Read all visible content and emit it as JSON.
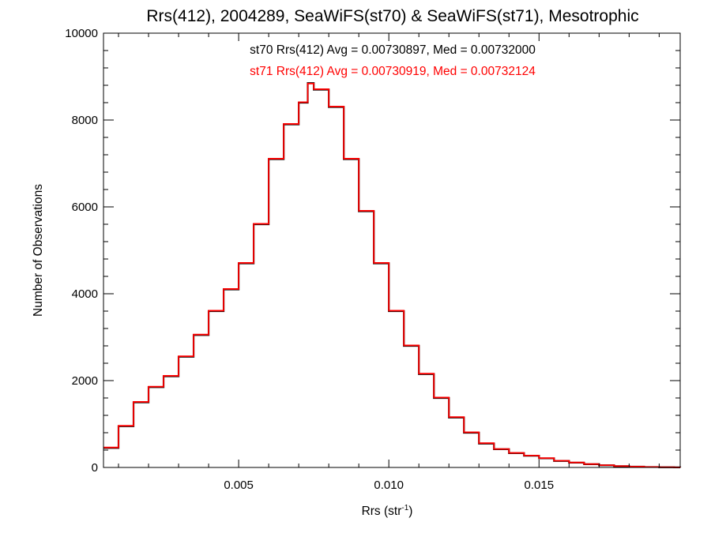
{
  "chart_data": {
    "type": "line",
    "title": "Rrs(412), 2004289, SeaWiFS(st70) & SeaWiFS(st71), Mesotrophic",
    "xlabel": "Rrs (str",
    "xlabel_sup": "-1",
    "xlabel_end": ")",
    "ylabel": "Number of Observations",
    "xlim": [
      0.0005,
      0.0197
    ],
    "ylim": [
      0,
      10000
    ],
    "xticks": [
      {
        "value": 0.005,
        "label": "0.005"
      },
      {
        "value": 0.01,
        "label": "0.010"
      },
      {
        "value": 0.015,
        "label": "0.015"
      }
    ],
    "yticks": [
      {
        "value": 0,
        "label": "0"
      },
      {
        "value": 2000,
        "label": "2000"
      },
      {
        "value": 4000,
        "label": "4000"
      },
      {
        "value": 6000,
        "label": "6000"
      },
      {
        "value": 8000,
        "label": "8000"
      },
      {
        "value": 10000,
        "label": "10000"
      }
    ],
    "annotations": [
      {
        "text": "st70 Rrs(412) Avg = 0.00730897, Med = 0.00732000",
        "color": "#000000"
      },
      {
        "text": "st71 Rrs(412) Avg = 0.00730919, Med = 0.00732124",
        "color": "#ff0000"
      }
    ],
    "series": [
      {
        "name": "st70",
        "color": "#000000",
        "step": true,
        "x": [
          0.0005,
          0.001,
          0.0015,
          0.002,
          0.0025,
          0.003,
          0.0035,
          0.004,
          0.0045,
          0.005,
          0.0055,
          0.006,
          0.0065,
          0.007,
          0.0073,
          0.0075,
          0.008,
          0.0085,
          0.009,
          0.0095,
          0.01,
          0.0105,
          0.011,
          0.0115,
          0.012,
          0.0125,
          0.013,
          0.0135,
          0.014,
          0.0145,
          0.015,
          0.0155,
          0.016,
          0.0165,
          0.017,
          0.0175,
          0.018,
          0.0185,
          0.019,
          0.0195,
          0.0197
        ],
        "y": [
          450,
          950,
          1500,
          1850,
          2100,
          2550,
          3050,
          3600,
          4100,
          4700,
          5600,
          7100,
          7900,
          8400,
          8850,
          8700,
          8300,
          7100,
          5900,
          4700,
          3600,
          2800,
          2150,
          1600,
          1150,
          800,
          550,
          420,
          330,
          270,
          210,
          150,
          110,
          75,
          50,
          30,
          18,
          10,
          5,
          2,
          0
        ]
      },
      {
        "name": "st71",
        "color": "#ff0000",
        "step": true,
        "x": [
          0.0005,
          0.001,
          0.0015,
          0.002,
          0.0025,
          0.003,
          0.0035,
          0.004,
          0.0045,
          0.005,
          0.0055,
          0.006,
          0.0065,
          0.007,
          0.0073,
          0.0075,
          0.008,
          0.0085,
          0.009,
          0.0095,
          0.01,
          0.0105,
          0.011,
          0.0115,
          0.012,
          0.0125,
          0.013,
          0.0135,
          0.014,
          0.0145,
          0.015,
          0.0155,
          0.016,
          0.0165,
          0.017,
          0.0175,
          0.018,
          0.0185,
          0.019,
          0.0195,
          0.0197
        ],
        "y": [
          460,
          960,
          1510,
          1860,
          2110,
          2560,
          3060,
          3610,
          4110,
          4710,
          5610,
          7110,
          7910,
          8410,
          8840,
          8710,
          8310,
          7110,
          5910,
          4710,
          3610,
          2810,
          2160,
          1610,
          1160,
          810,
          560,
          425,
          335,
          275,
          215,
          155,
          115,
          78,
          52,
          32,
          19,
          11,
          6,
          2,
          0
        ]
      }
    ]
  }
}
